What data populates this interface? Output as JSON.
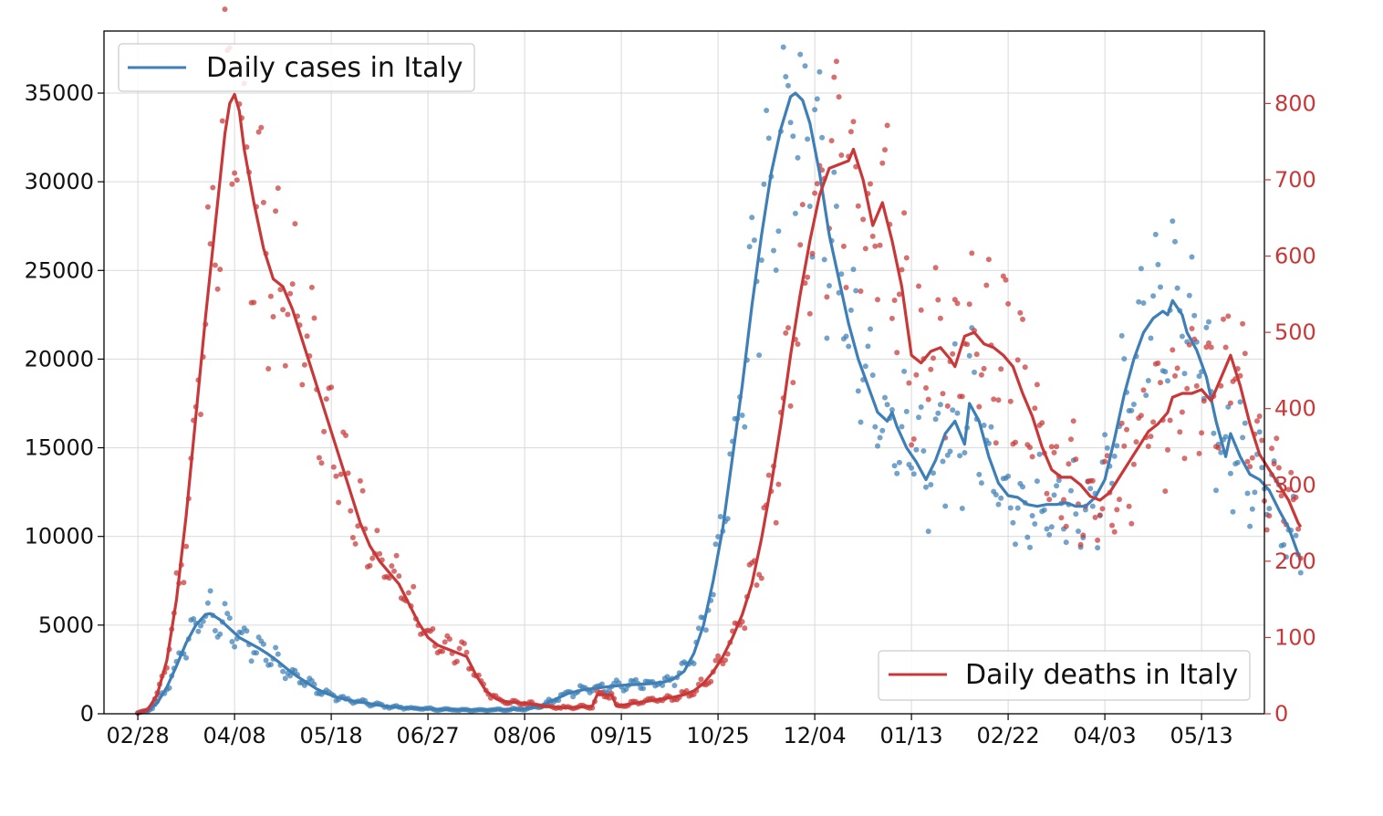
{
  "colors": {
    "cases": "#3d7fb6",
    "deaths": "#c93838",
    "grid": "#d9d9d9",
    "frame": "#000000"
  },
  "chart_data": {
    "type": "line",
    "x_tick_labels": [
      "02/28",
      "04/08",
      "05/18",
      "06/27",
      "08/06",
      "09/15",
      "10/25",
      "12/04",
      "01/13",
      "02/22",
      "04/03",
      "05/13"
    ],
    "y_left": {
      "ticks": [
        0,
        5000,
        10000,
        15000,
        20000,
        25000,
        30000,
        35000
      ],
      "lim": [
        0,
        38500
      ]
    },
    "y_right": {
      "ticks": [
        0,
        100,
        200,
        300,
        400,
        500,
        600,
        700,
        800
      ],
      "lim": [
        0,
        895
      ]
    },
    "x_lim_days": [
      -14,
      466
    ],
    "grid": true,
    "series": [
      {
        "name": "Daily cases in Italy",
        "axis": "left",
        "legend_position": "top-left",
        "smoothed": [
          [
            0,
            50
          ],
          [
            4,
            150
          ],
          [
            8,
            600
          ],
          [
            12,
            1500
          ],
          [
            16,
            2700
          ],
          [
            20,
            4000
          ],
          [
            24,
            5000
          ],
          [
            28,
            5600
          ],
          [
            30,
            5650
          ],
          [
            34,
            5300
          ],
          [
            38,
            4800
          ],
          [
            42,
            4300
          ],
          [
            46,
            4000
          ],
          [
            50,
            3700
          ],
          [
            54,
            3350
          ],
          [
            58,
            2950
          ],
          [
            62,
            2500
          ],
          [
            66,
            2100
          ],
          [
            70,
            1750
          ],
          [
            74,
            1400
          ],
          [
            78,
            1150
          ],
          [
            82,
            950
          ],
          [
            86,
            800
          ],
          [
            90,
            700
          ],
          [
            94,
            620
          ],
          [
            98,
            520
          ],
          [
            102,
            440
          ],
          [
            106,
            380
          ],
          [
            110,
            340
          ],
          [
            115,
            300
          ],
          [
            120,
            270
          ],
          [
            126,
            240
          ],
          [
            132,
            220
          ],
          [
            140,
            210
          ],
          [
            150,
            220
          ],
          [
            160,
            280
          ],
          [
            166,
            400
          ],
          [
            170,
            650
          ],
          [
            174,
            900
          ],
          [
            178,
            1150
          ],
          [
            184,
            1350
          ],
          [
            190,
            1450
          ],
          [
            196,
            1550
          ],
          [
            200,
            1600
          ],
          [
            206,
            1650
          ],
          [
            212,
            1700
          ],
          [
            218,
            1800
          ],
          [
            222,
            2000
          ],
          [
            226,
            2400
          ],
          [
            230,
            3400
          ],
          [
            234,
            5000
          ],
          [
            238,
            7500
          ],
          [
            242,
            10500
          ],
          [
            246,
            14500
          ],
          [
            250,
            18500
          ],
          [
            254,
            23000
          ],
          [
            258,
            27000
          ],
          [
            262,
            30500
          ],
          [
            266,
            33000
          ],
          [
            270,
            34800
          ],
          [
            272,
            35000
          ],
          [
            275,
            34600
          ],
          [
            278,
            33300
          ],
          [
            282,
            30500
          ],
          [
            286,
            27000
          ],
          [
            290,
            24500
          ],
          [
            294,
            22000
          ],
          [
            298,
            20000
          ],
          [
            302,
            18500
          ],
          [
            306,
            17000
          ],
          [
            310,
            16500
          ],
          [
            312,
            17000
          ],
          [
            314,
            16200
          ],
          [
            318,
            15000
          ],
          [
            322,
            14200
          ],
          [
            326,
            13200
          ],
          [
            330,
            14300
          ],
          [
            334,
            15800
          ],
          [
            338,
            16500
          ],
          [
            342,
            15200
          ],
          [
            344,
            17500
          ],
          [
            348,
            16500
          ],
          [
            352,
            14500
          ],
          [
            356,
            13000
          ],
          [
            360,
            12300
          ],
          [
            364,
            12200
          ],
          [
            368,
            11800
          ],
          [
            372,
            11700
          ],
          [
            376,
            11800
          ],
          [
            380,
            11800
          ],
          [
            384,
            11900
          ],
          [
            388,
            11700
          ],
          [
            392,
            11700
          ],
          [
            396,
            12200
          ],
          [
            400,
            13200
          ],
          [
            404,
            15500
          ],
          [
            408,
            18000
          ],
          [
            412,
            20000
          ],
          [
            416,
            21500
          ],
          [
            420,
            22300
          ],
          [
            424,
            22700
          ],
          [
            426,
            22500
          ],
          [
            428,
            23300
          ],
          [
            432,
            22500
          ],
          [
            434,
            21500
          ],
          [
            438,
            20500
          ],
          [
            442,
            19000
          ],
          [
            446,
            16500
          ],
          [
            450,
            14500
          ],
          [
            452,
            15800
          ],
          [
            456,
            14500
          ],
          [
            460,
            13500
          ],
          [
            464,
            13200
          ],
          [
            468,
            12600
          ],
          [
            472,
            11500
          ],
          [
            476,
            10500
          ],
          [
            480,
            9000
          ],
          [
            481,
            8700
          ]
        ]
      },
      {
        "name": "Daily deaths in Italy",
        "axis": "right",
        "legend_position": "bottom-right",
        "smoothed": [
          [
            0,
            1
          ],
          [
            4,
            5
          ],
          [
            8,
            25
          ],
          [
            12,
            70
          ],
          [
            16,
            150
          ],
          [
            20,
            260
          ],
          [
            24,
            390
          ],
          [
            28,
            520
          ],
          [
            32,
            640
          ],
          [
            36,
            760
          ],
          [
            38,
            800
          ],
          [
            40,
            812
          ],
          [
            42,
            790
          ],
          [
            44,
            740
          ],
          [
            48,
            670
          ],
          [
            52,
            610
          ],
          [
            56,
            570
          ],
          [
            60,
            560
          ],
          [
            64,
            530
          ],
          [
            68,
            490
          ],
          [
            72,
            450
          ],
          [
            76,
            410
          ],
          [
            80,
            370
          ],
          [
            84,
            330
          ],
          [
            88,
            290
          ],
          [
            92,
            250
          ],
          [
            96,
            220
          ],
          [
            100,
            200
          ],
          [
            104,
            185
          ],
          [
            108,
            170
          ],
          [
            112,
            145
          ],
          [
            116,
            120
          ],
          [
            120,
            100
          ],
          [
            124,
            90
          ],
          [
            128,
            85
          ],
          [
            132,
            80
          ],
          [
            136,
            75
          ],
          [
            140,
            50
          ],
          [
            144,
            30
          ],
          [
            148,
            20
          ],
          [
            152,
            16
          ],
          [
            156,
            15
          ],
          [
            160,
            14
          ],
          [
            164,
            12
          ],
          [
            168,
            10
          ],
          [
            172,
            9
          ],
          [
            176,
            8
          ],
          [
            180,
            8
          ],
          [
            184,
            9
          ],
          [
            188,
            10
          ],
          [
            190,
            25
          ],
          [
            196,
            25
          ],
          [
            198,
            10
          ],
          [
            202,
            12
          ],
          [
            206,
            14
          ],
          [
            210,
            16
          ],
          [
            214,
            18
          ],
          [
            218,
            20
          ],
          [
            222,
            22
          ],
          [
            226,
            25
          ],
          [
            230,
            30
          ],
          [
            234,
            40
          ],
          [
            238,
            55
          ],
          [
            242,
            75
          ],
          [
            246,
            100
          ],
          [
            250,
            130
          ],
          [
            254,
            170
          ],
          [
            258,
            230
          ],
          [
            262,
            300
          ],
          [
            266,
            380
          ],
          [
            270,
            470
          ],
          [
            274,
            550
          ],
          [
            278,
            620
          ],
          [
            282,
            680
          ],
          [
            286,
            715
          ],
          [
            290,
            720
          ],
          [
            294,
            725
          ],
          [
            296,
            740
          ],
          [
            300,
            700
          ],
          [
            304,
            640
          ],
          [
            308,
            670
          ],
          [
            312,
            620
          ],
          [
            316,
            560
          ],
          [
            320,
            470
          ],
          [
            324,
            460
          ],
          [
            328,
            475
          ],
          [
            332,
            480
          ],
          [
            336,
            465
          ],
          [
            338,
            455
          ],
          [
            342,
            495
          ],
          [
            346,
            500
          ],
          [
            350,
            485
          ],
          [
            354,
            480
          ],
          [
            358,
            470
          ],
          [
            362,
            455
          ],
          [
            366,
            420
          ],
          [
            370,
            390
          ],
          [
            374,
            350
          ],
          [
            378,
            320
          ],
          [
            382,
            310
          ],
          [
            386,
            310
          ],
          [
            390,
            300
          ],
          [
            394,
            285
          ],
          [
            398,
            280
          ],
          [
            402,
            290
          ],
          [
            406,
            310
          ],
          [
            410,
            330
          ],
          [
            414,
            350
          ],
          [
            418,
            370
          ],
          [
            422,
            380
          ],
          [
            426,
            395
          ],
          [
            428,
            415
          ],
          [
            432,
            420
          ],
          [
            436,
            420
          ],
          [
            440,
            425
          ],
          [
            444,
            410
          ],
          [
            448,
            440
          ],
          [
            452,
            470
          ],
          [
            456,
            430
          ],
          [
            460,
            380
          ],
          [
            464,
            340
          ],
          [
            468,
            320
          ],
          [
            472,
            300
          ],
          [
            476,
            280
          ],
          [
            480,
            250
          ],
          [
            481,
            245
          ]
        ]
      }
    ]
  }
}
